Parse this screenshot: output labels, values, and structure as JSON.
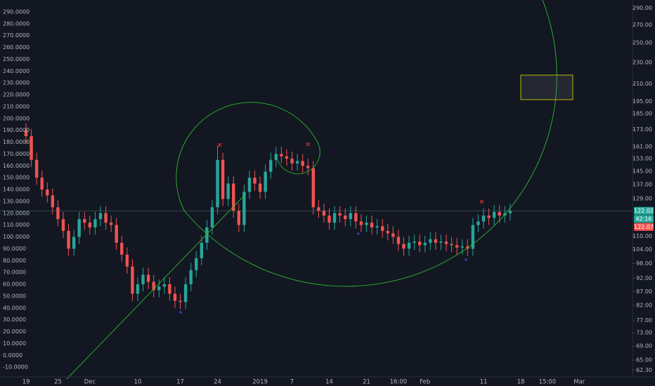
{
  "chart_data": {
    "type": "candlestick",
    "categories": [
      "19",
      null,
      null,
      null,
      null,
      null,
      "25",
      null,
      null,
      null,
      null,
      null,
      "Dec",
      null,
      null,
      null,
      null,
      null,
      null,
      null,
      null,
      "10",
      null,
      null,
      null,
      null,
      null,
      null,
      null,
      "17",
      null,
      null,
      null,
      null,
      null,
      null,
      "24",
      null,
      null,
      null,
      null,
      null,
      null,
      null,
      "2019",
      null,
      null,
      null,
      null,
      null,
      "7",
      null,
      null,
      null,
      null,
      null,
      null,
      "14",
      null,
      null,
      null,
      null,
      null,
      null,
      "21",
      null,
      null,
      null,
      null,
      null,
      "16:00",
      null,
      null,
      null,
      null,
      "Feb",
      null,
      null,
      null,
      null,
      null,
      null,
      null,
      null,
      null,
      null,
      "11",
      null,
      null,
      null,
      null,
      null,
      null,
      "18",
      null,
      null,
      null,
      null,
      "15:00",
      null,
      null,
      null,
      null,
      null,
      "Mar",
      null,
      null,
      null,
      null,
      null,
      null,
      null,
      null,
      null
    ],
    "open": [
      190,
      185,
      165,
      150,
      140,
      135,
      125,
      115,
      105,
      90,
      100,
      115,
      112,
      108,
      115,
      120,
      112,
      110,
      95,
      85,
      75,
      52,
      60,
      68,
      62,
      55,
      58,
      60,
      52,
      46,
      45,
      60,
      72,
      82,
      95,
      108,
      125,
      165,
      132,
      145,
      122,
      110,
      138,
      150,
      145,
      138,
      155,
      165,
      170,
      168,
      166,
      162,
      164,
      160,
      158,
      125,
      122,
      118,
      112,
      120,
      118,
      115,
      120,
      113,
      110,
      112,
      108,
      109,
      105,
      103,
      100,
      94,
      90,
      95,
      96,
      93,
      95,
      98,
      95,
      96,
      94,
      93,
      91,
      92,
      90,
      110,
      113,
      118,
      116,
      121,
      118,
      120,
      null,
      null,
      null,
      null,
      null,
      null,
      null,
      null,
      null,
      null,
      null,
      null,
      null,
      null,
      null,
      null,
      null,
      null,
      null,
      null,
      null,
      null
    ],
    "high": [
      196,
      191,
      171,
      156,
      146,
      141,
      131,
      121,
      111,
      106,
      121,
      121,
      118,
      121,
      126,
      126,
      118,
      116,
      101,
      91,
      81,
      66,
      74,
      74,
      68,
      64,
      66,
      66,
      58,
      52,
      66,
      78,
      88,
      101,
      114,
      131,
      177,
      171,
      151,
      151,
      128,
      144,
      156,
      156,
      151,
      161,
      171,
      176,
      176,
      174,
      172,
      170,
      170,
      166,
      164,
      131,
      128,
      124,
      126,
      126,
      124,
      126,
      126,
      119,
      118,
      118,
      115,
      115,
      111,
      109,
      106,
      100,
      101,
      102,
      102,
      101,
      104,
      104,
      102,
      102,
      100,
      99,
      98,
      98,
      116,
      119,
      124,
      124,
      127,
      127,
      126,
      128,
      null,
      null,
      null,
      null,
      null,
      null,
      null,
      null,
      null,
      null,
      null,
      null,
      null,
      null,
      null,
      null,
      null,
      null,
      null,
      null,
      null,
      null
    ],
    "low": [
      179,
      159,
      144,
      134,
      129,
      119,
      109,
      99,
      84,
      84,
      94,
      106,
      102,
      102,
      109,
      106,
      104,
      89,
      79,
      69,
      46,
      46,
      54,
      56,
      49,
      49,
      52,
      46,
      40,
      39,
      39,
      54,
      66,
      76,
      89,
      102,
      119,
      126,
      126,
      116,
      104,
      104,
      132,
      139,
      132,
      132,
      149,
      159,
      162,
      160,
      156,
      156,
      154,
      152,
      119,
      116,
      112,
      106,
      106,
      112,
      109,
      109,
      107,
      104,
      104,
      102,
      102,
      99,
      97,
      94,
      88,
      84,
      84,
      89,
      87,
      87,
      89,
      89,
      89,
      88,
      87,
      85,
      85,
      84,
      84,
      104,
      107,
      110,
      110,
      112,
      112,
      114,
      null,
      null,
      null,
      null,
      null,
      null,
      null,
      null,
      null,
      null,
      null,
      null,
      null,
      null,
      null,
      null,
      null,
      null,
      null,
      null,
      null,
      null
    ],
    "close": [
      185,
      165,
      150,
      140,
      135,
      125,
      115,
      105,
      90,
      100,
      115,
      112,
      108,
      115,
      120,
      112,
      110,
      95,
      85,
      75,
      52,
      60,
      68,
      62,
      55,
      58,
      60,
      52,
      46,
      45,
      60,
      72,
      82,
      95,
      108,
      125,
      165,
      132,
      145,
      122,
      110,
      138,
      150,
      145,
      138,
      155,
      165,
      170,
      168,
      166,
      162,
      164,
      160,
      158,
      125,
      122,
      118,
      112,
      120,
      118,
      115,
      120,
      113,
      110,
      112,
      108,
      109,
      105,
      103,
      100,
      94,
      90,
      95,
      96,
      93,
      95,
      98,
      95,
      96,
      94,
      93,
      91,
      92,
      90,
      110,
      113,
      118,
      116,
      121,
      118,
      120,
      122,
      null,
      null,
      null,
      null,
      null,
      null,
      null,
      null,
      null,
      null,
      null,
      null,
      null,
      null,
      null,
      null,
      null,
      null,
      null,
      null,
      null,
      null
    ],
    "up_color": "#26a69a",
    "down_color": "#ef5350",
    "ylim": [
      -20,
      300
    ],
    "yticks": [
      {
        "value": -10,
        "label": "-10.0000"
      },
      {
        "value": 0,
        "label": "0.0000"
      },
      {
        "value": 10,
        "label": "10.0000"
      },
      {
        "value": 20,
        "label": "20.0000"
      },
      {
        "value": 30,
        "label": "30.0000"
      },
      {
        "value": 40,
        "label": "40.0000"
      },
      {
        "value": 50,
        "label": "50.0000"
      },
      {
        "value": 60,
        "label": "60.0000"
      },
      {
        "value": 70,
        "label": "70.0000"
      },
      {
        "value": 80,
        "label": "80.0000"
      },
      {
        "value": 90,
        "label": "90.0000"
      },
      {
        "value": 100,
        "label": "100.0000"
      },
      {
        "value": 110,
        "label": "110.0000"
      },
      {
        "value": 120,
        "label": "120.0000"
      },
      {
        "value": 130,
        "label": "130.0000"
      },
      {
        "value": 140,
        "label": "140.0000"
      },
      {
        "value": 150,
        "label": "150.0000"
      },
      {
        "value": 160,
        "label": "160.0000"
      },
      {
        "value": 170,
        "label": "170.0000"
      },
      {
        "value": 180,
        "label": "180.0000"
      },
      {
        "value": 190,
        "label": "190.0000"
      },
      {
        "value": 200,
        "label": "200.0000"
      },
      {
        "value": 210,
        "label": "210.0000"
      },
      {
        "value": 220,
        "label": "220.0000"
      },
      {
        "value": 230,
        "label": "230.0000"
      },
      {
        "value": 240,
        "label": "240.0000"
      },
      {
        "value": 250,
        "label": "250.0000"
      },
      {
        "value": 260,
        "label": "260.0000"
      },
      {
        "value": 270,
        "label": "270.0000"
      },
      {
        "value": 280,
        "label": "280.0000"
      },
      {
        "value": 290,
        "label": "290.0000"
      }
    ],
    "y2lim": [
      60,
      300
    ],
    "y2_log": true,
    "y2ticks": [
      {
        "value": 290,
        "label": "290.00"
      },
      {
        "value": 270,
        "label": "270.00"
      },
      {
        "value": 250,
        "label": "250.00"
      },
      {
        "value": 230,
        "label": "230.00"
      },
      {
        "value": 210,
        "label": "210.00"
      },
      {
        "value": 195,
        "label": "195.00"
      },
      {
        "value": 185,
        "label": "185.00"
      },
      {
        "value": 173,
        "label": "173.00"
      },
      {
        "value": 161,
        "label": "161.00"
      },
      {
        "value": 153,
        "label": "153.00"
      },
      {
        "value": 145,
        "label": "145.00"
      },
      {
        "value": 137,
        "label": "137.00"
      },
      {
        "value": 129,
        "label": "129.00"
      },
      {
        "value": 110,
        "label": "110.00"
      },
      {
        "value": 104,
        "label": "104.00"
      },
      {
        "value": 98,
        "label": "98.00"
      },
      {
        "value": 92,
        "label": "92.00"
      },
      {
        "value": 87,
        "label": "87.00"
      },
      {
        "value": 82,
        "label": "82.00"
      },
      {
        "value": 77,
        "label": "77.00"
      },
      {
        "value": 73,
        "label": "73.00"
      },
      {
        "value": 69,
        "label": "69.00"
      },
      {
        "value": 65,
        "label": "65.00"
      },
      {
        "value": 62.3,
        "label": "62.30"
      }
    ],
    "badges": [
      "122.02",
      "42:16",
      "122.07"
    ]
  }
}
